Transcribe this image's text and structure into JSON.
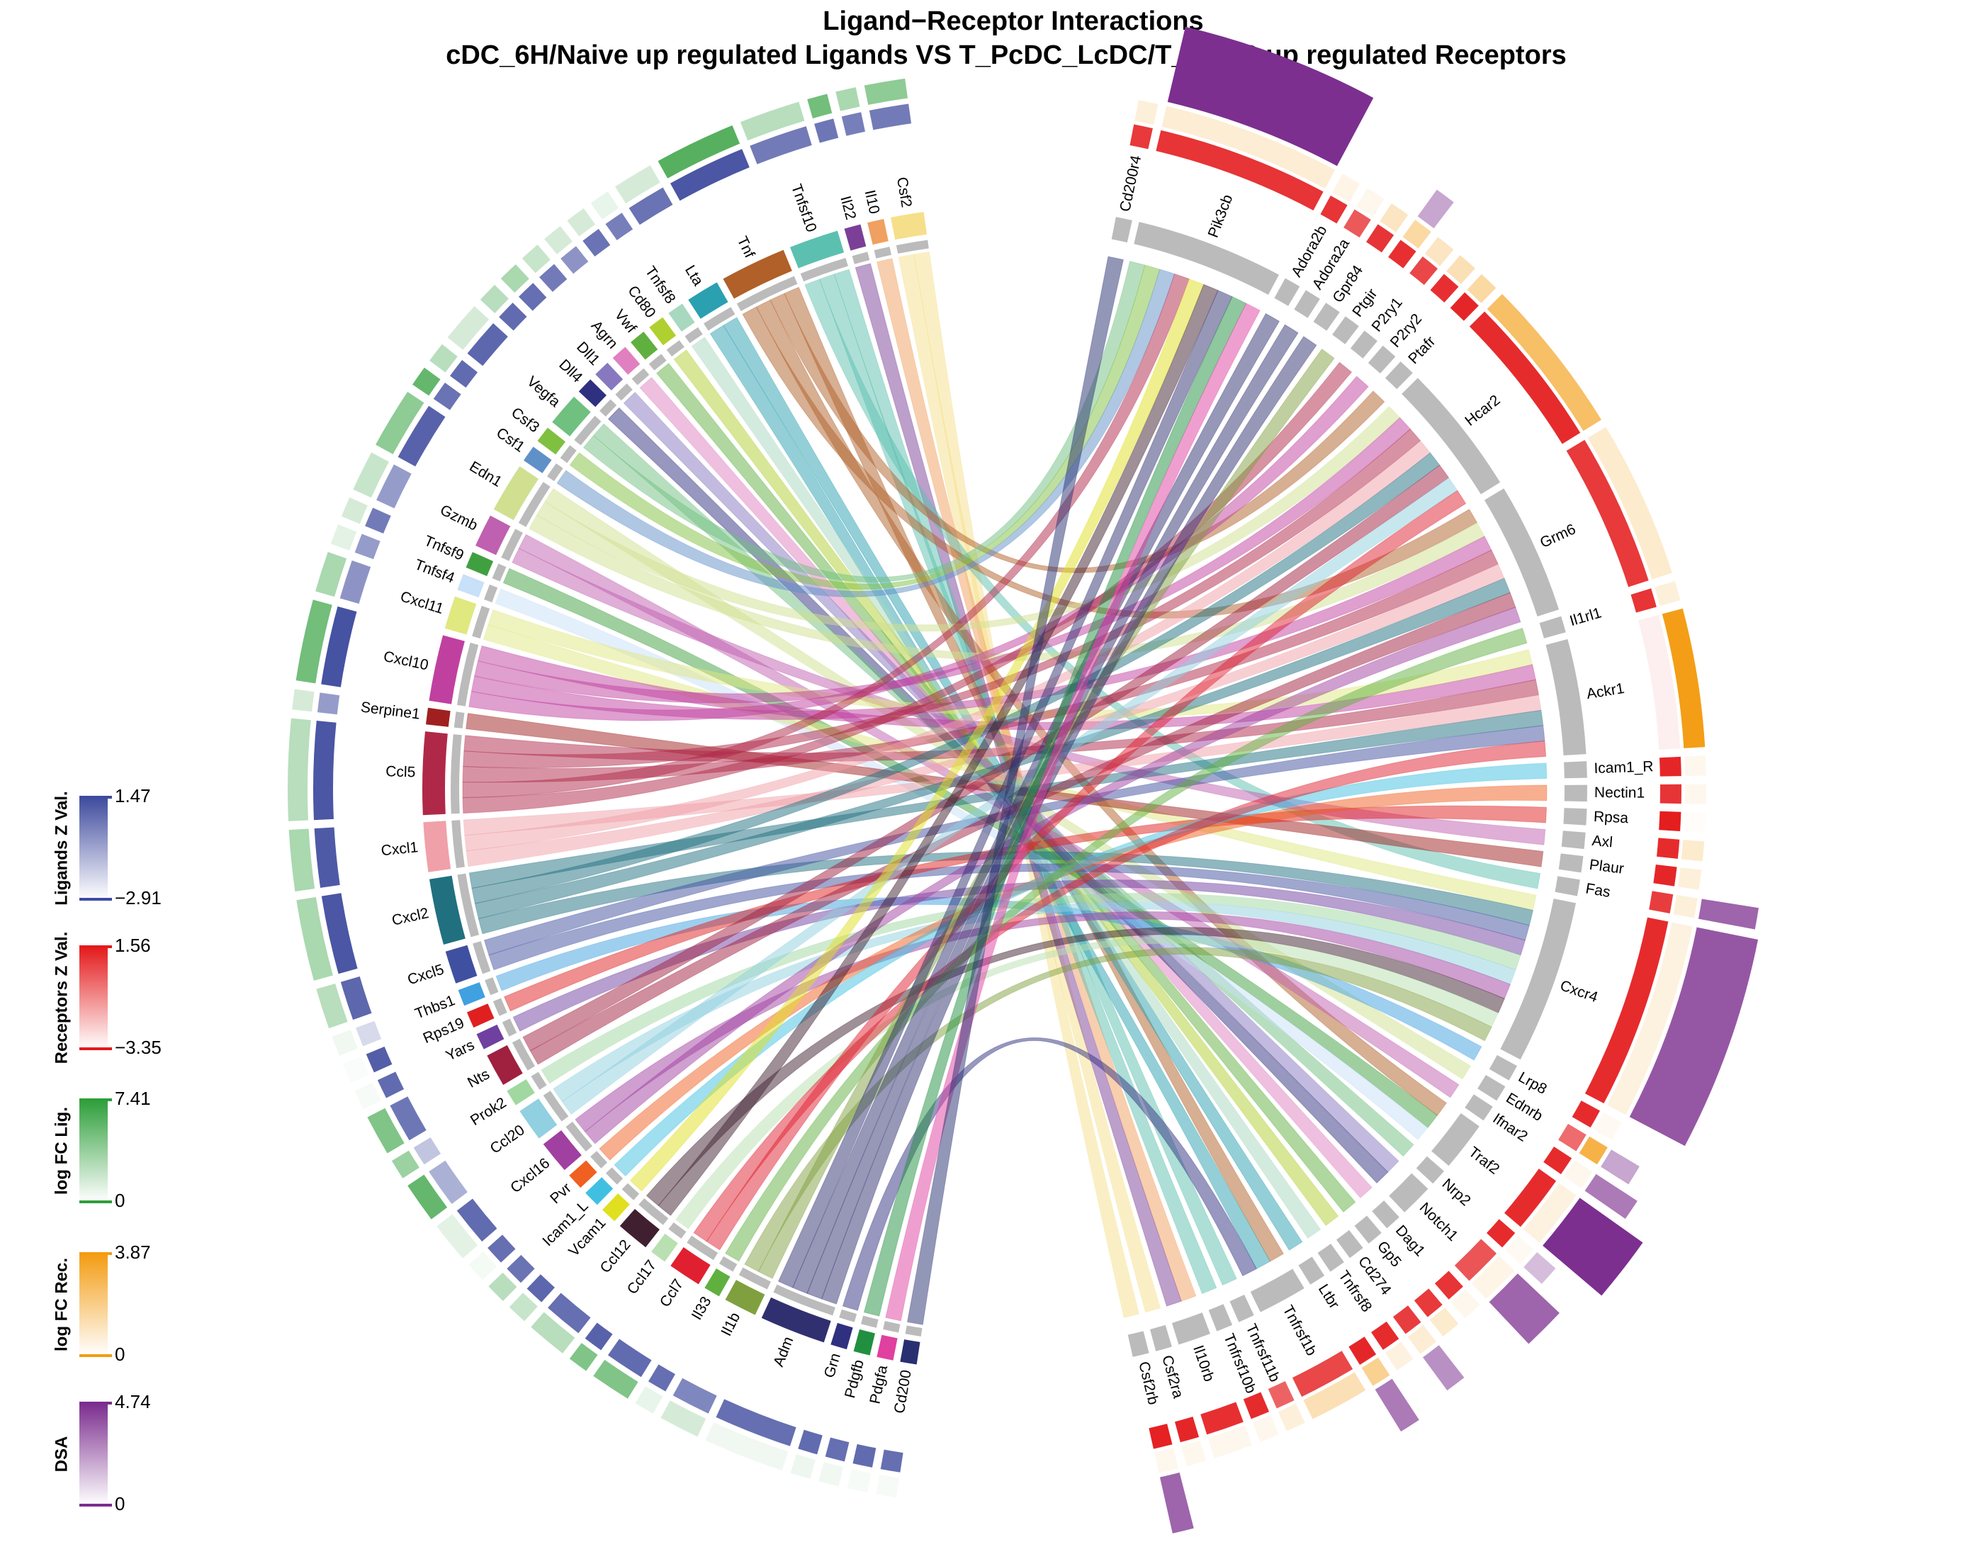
{
  "chart_data": {
    "type": "chord",
    "title": "Ligand−Receptor Interactions",
    "subtitle": "cDC_6H/Naive up regulated Ligands VS T_PcDC_LcDC/T_PcDC up regulated Receptors",
    "ligands": [
      {
        "name": "Csf2",
        "color": "#f6df8a",
        "zval": 0.3,
        "logfc": 4
      },
      {
        "name": "Il10",
        "color": "#f0a060",
        "zval": 0.2,
        "logfc": 3
      },
      {
        "name": "Il22",
        "color": "#7b3f98",
        "zval": 0.4,
        "logfc": 5
      },
      {
        "name": "Tnfsf10",
        "color": "#5cc0b0",
        "zval": 0.3,
        "logfc": 2.5
      },
      {
        "name": "Tnf",
        "color": "#b06028",
        "zval": 1.2,
        "logfc": 6
      },
      {
        "name": "Lta",
        "color": "#2aa0b0",
        "zval": 0.5,
        "logfc": 1.5
      },
      {
        "name": "Tnfsf8",
        "color": "#a8d8c0",
        "zval": 0.2,
        "logfc": 0.8
      },
      {
        "name": "Cd80",
        "color": "#b0d030",
        "zval": 0.5,
        "logfc": 1.5
      },
      {
        "name": "Vwf",
        "color": "#60b040",
        "zval": -0.3,
        "logfc": 1.5
      },
      {
        "name": "Agrn",
        "color": "#e080c0",
        "zval": 0.3,
        "logfc": 2
      },
      {
        "name": "Dll1",
        "color": "#8878c0",
        "zval": 0.6,
        "logfc": 3
      },
      {
        "name": "Dll4",
        "color": "#303080",
        "zval": 0.7,
        "logfc": 2.5
      },
      {
        "name": "Vegfa",
        "color": "#70c080",
        "zval": 0.8,
        "logfc": 1.5
      },
      {
        "name": "Csf3",
        "color": "#80c040",
        "zval": 0.7,
        "logfc": 2.5
      },
      {
        "name": "Csf1",
        "color": "#6090c8",
        "zval": 0.5,
        "logfc": 5.5
      },
      {
        "name": "Edn1",
        "color": "#d0e090",
        "zval": 0.9,
        "logfc": 4
      },
      {
        "name": "Gzmb",
        "color": "#c060b0",
        "zval": -0.5,
        "logfc": 2
      },
      {
        "name": "Tnfsf9",
        "color": "#40a040",
        "zval": 0.3,
        "logfc": 1.5
      },
      {
        "name": "Tnfsf4",
        "color": "#c8e0f8",
        "zval": -0.5,
        "logfc": 1
      },
      {
        "name": "Cxcl11",
        "color": "#e0e880",
        "zval": -0.3,
        "logfc": 3
      },
      {
        "name": "Cxcl10",
        "color": "#c040a0",
        "zval": 1.3,
        "logfc": 5
      },
      {
        "name": "Serpine1",
        "color": "#a02020",
        "zval": -0.5,
        "logfc": 1.5
      },
      {
        "name": "Ccl5",
        "color": "#b02848",
        "zval": 1.2,
        "logfc": 2.5
      },
      {
        "name": "Cxcl1",
        "color": "#f0a0a8",
        "zval": 1.1,
        "logfc": 3
      },
      {
        "name": "Cxcl2",
        "color": "#207080",
        "zval": 1.2,
        "logfc": 3
      },
      {
        "name": "Cxcl5",
        "color": "#4050a0",
        "zval": 0.8,
        "logfc": 2.5
      },
      {
        "name": "Thbs1",
        "color": "#40a0e0",
        "zval": -2,
        "logfc": 0.5
      },
      {
        "name": "Rps19",
        "color": "#e02020",
        "zval": 1,
        "logfc": 0.2
      },
      {
        "name": "Yars",
        "color": "#7040a0",
        "zval": 0.7,
        "logfc": 0.3
      },
      {
        "name": "Nts",
        "color": "#a02040",
        "zval": 0.4,
        "logfc": 4.5
      },
      {
        "name": "Prok2",
        "color": "#a0d8a0",
        "zval": -1.5,
        "logfc": 3.5
      },
      {
        "name": "Ccl20",
        "color": "#90d0e0",
        "zval": -1,
        "logfc": 5.5
      },
      {
        "name": "Cxcl16",
        "color": "#a040a0",
        "zval": 0.7,
        "logfc": 1
      },
      {
        "name": "Pvr",
        "color": "#f06020",
        "zval": 0.6,
        "logfc": 0.4
      },
      {
        "name": "Icam1_L",
        "color": "#40c0e0",
        "zval": 0.5,
        "logfc": 2.5
      },
      {
        "name": "Vcam1",
        "color": "#e0e020",
        "zval": 0.8,
        "logfc": 2
      },
      {
        "name": "Ccl12",
        "color": "#402030",
        "zval": 0.6,
        "logfc": 2.5
      },
      {
        "name": "Ccl17",
        "color": "#b8e0b0",
        "zval": 0.9,
        "logfc": 4.5
      },
      {
        "name": "Ccl7",
        "color": "#e02030",
        "zval": 0.7,
        "logfc": 4.5
      },
      {
        "name": "Il33",
        "color": "#60b040",
        "zval": 0.6,
        "logfc": 0.8
      },
      {
        "name": "Il1b",
        "color": "#80a040",
        "zval": 0,
        "logfc": 1.5
      },
      {
        "name": "Adm",
        "color": "#303070",
        "zval": 0.6,
        "logfc": 0.5
      },
      {
        "name": "Grn",
        "color": "#303080",
        "zval": 0.7,
        "logfc": 0.6
      },
      {
        "name": "Pdgfb",
        "color": "#209040",
        "zval": 0.6,
        "logfc": 0.5
      },
      {
        "name": "Pdgfa",
        "color": "#e040a0",
        "zval": 0.7,
        "logfc": 0.3
      },
      {
        "name": "Cd200",
        "color": "#283070",
        "zval": 0.6,
        "logfc": 0.3
      }
    ],
    "receptors": [
      {
        "name": "Cd200r4",
        "zval": 0.9,
        "logfc": 0.6,
        "dsa": 0
      },
      {
        "name": "Pik3cb",
        "zval": 1,
        "logfc": 0.7,
        "dsa": 4.7
      },
      {
        "name": "Adora2b",
        "zval": 1,
        "logfc": 0.4,
        "dsa": 0
      },
      {
        "name": "Adora2a",
        "zval": 0.2,
        "logfc": 0.3,
        "dsa": 0
      },
      {
        "name": "Gpr84",
        "zval": 1,
        "logfc": 1,
        "dsa": 0
      },
      {
        "name": "Ptgir",
        "zval": 1.1,
        "logfc": 1.5,
        "dsa": 2
      },
      {
        "name": "P2ry1",
        "zval": 0.6,
        "logfc": 1,
        "dsa": 0
      },
      {
        "name": "P2ry2",
        "zval": 1.1,
        "logfc": 1.2,
        "dsa": 0
      },
      {
        "name": "Ptafr",
        "zval": 1.3,
        "logfc": 1.5,
        "dsa": 0
      },
      {
        "name": "Hcar2",
        "zval": 1.2,
        "logfc": 2.5,
        "dsa": 0
      },
      {
        "name": "Grm6",
        "zval": 0.9,
        "logfc": 0.8,
        "dsa": 0
      },
      {
        "name": "Il1rl1",
        "zval": 1,
        "logfc": 0.6,
        "dsa": 0
      },
      {
        "name": "Ackr1",
        "zval": -3,
        "logfc": 3.8,
        "dsa": 0
      },
      {
        "name": "Icam1_R",
        "zval": 1.3,
        "logfc": 0.3,
        "dsa": 0
      },
      {
        "name": "Nectin1",
        "zval": 1,
        "logfc": 0.3,
        "dsa": 0
      },
      {
        "name": "Rpsa",
        "zval": 1.5,
        "logfc": 0.1,
        "dsa": 0
      },
      {
        "name": "Axl",
        "zval": 1.2,
        "logfc": 0.8,
        "dsa": 0
      },
      {
        "name": "Plaur",
        "zval": 1.3,
        "logfc": 0.6,
        "dsa": 0
      },
      {
        "name": "Fas",
        "zval": 0.8,
        "logfc": 0.6,
        "dsa": 3.5
      },
      {
        "name": "Cxcr4",
        "zval": 1.2,
        "logfc": 0.5,
        "dsa": 3.8
      },
      {
        "name": "Lrp8",
        "zval": 1.2,
        "logfc": 0.2,
        "dsa": 0
      },
      {
        "name": "Ednrb",
        "zval": -0.2,
        "logfc": 3,
        "dsa": 2
      },
      {
        "name": "Ifnar2",
        "zval": 1.2,
        "logfc": 0.3,
        "dsa": 3
      },
      {
        "name": "Traf2",
        "zval": 1.2,
        "logfc": 0.5,
        "dsa": 4.7
      },
      {
        "name": "Nrp2",
        "zval": 1.2,
        "logfc": 0.2,
        "dsa": 1.5
      },
      {
        "name": "Notch1",
        "zval": 0.3,
        "logfc": 0.4,
        "dsa": 3.5
      },
      {
        "name": "Dag1",
        "zval": 1,
        "logfc": 0.3,
        "dsa": 0
      },
      {
        "name": "Gp5",
        "zval": 0.9,
        "logfc": 0.8,
        "dsa": 0
      },
      {
        "name": "Cd274",
        "zval": 0.8,
        "logfc": 0.7,
        "dsa": 2.5
      },
      {
        "name": "Tnfrsf8",
        "zval": 1.2,
        "logfc": 0.5,
        "dsa": 0
      },
      {
        "name": "Ltbr",
        "zval": 1.3,
        "logfc": 1.8,
        "dsa": 3
      },
      {
        "name": "Tnfrsf1b",
        "zval": 0.6,
        "logfc": 1.2,
        "dsa": 0
      },
      {
        "name": "Tnfrsf11b",
        "zval": 0,
        "logfc": 0.6,
        "dsa": 0
      },
      {
        "name": "Tnfrsf10b",
        "zval": 1.2,
        "logfc": 0.3,
        "dsa": 0
      },
      {
        "name": "Il10rb",
        "zval": 1.1,
        "logfc": 0.3,
        "dsa": 0
      },
      {
        "name": "Csf2ra",
        "zval": 1.3,
        "logfc": 0.3,
        "dsa": 0
      },
      {
        "name": "Csf2rb",
        "zval": 1.4,
        "logfc": 0.3,
        "dsa": 3.5
      }
    ],
    "links": [
      [
        "Csf2",
        "Csf2rb"
      ],
      [
        "Csf2",
        "Csf2ra"
      ],
      [
        "Il10",
        "Il10rb"
      ],
      [
        "Il22",
        "Il10rb"
      ],
      [
        "Tnfsf10",
        "Tnfrsf10b"
      ],
      [
        "Tnfsf10",
        "Tnfrsf11b"
      ],
      [
        "Tnfsf10",
        "Fas"
      ],
      [
        "Tnf",
        "Tnfrsf1b"
      ],
      [
        "Tnf",
        "Ptafr"
      ],
      [
        "Tnf",
        "Traf2"
      ],
      [
        "Tnf",
        "Grm6"
      ],
      [
        "Lta",
        "Ltbr"
      ],
      [
        "Lta",
        "Tnfrsf1b"
      ],
      [
        "Tnfsf8",
        "Tnfrsf8"
      ],
      [
        "Cd80",
        "Cd274"
      ],
      [
        "Vwf",
        "Gp5"
      ],
      [
        "Agrn",
        "Dag1"
      ],
      [
        "Dll1",
        "Notch1"
      ],
      [
        "Dll4",
        "Notch1"
      ],
      [
        "Vegfa",
        "Nrp2"
      ],
      [
        "Vegfa",
        "Pik3cb"
      ],
      [
        "Csf3",
        "Pik3cb"
      ],
      [
        "Csf1",
        "Pik3cb"
      ],
      [
        "Edn1",
        "Ednrb"
      ],
      [
        "Edn1",
        "Hcar2"
      ],
      [
        "Edn1",
        "Grm6"
      ],
      [
        "Gzmb",
        "Ifnar2"
      ],
      [
        "Gzmb",
        "Axl"
      ],
      [
        "Tnfsf9",
        "Traf2"
      ],
      [
        "Tnfsf4",
        "Traf2"
      ],
      [
        "Cxcl11",
        "Ackr1"
      ],
      [
        "Cxcl11",
        "Cxcr4"
      ],
      [
        "Cxcl10",
        "Ackr1"
      ],
      [
        "Cxcl10",
        "Hcar2"
      ],
      [
        "Cxcl10",
        "Grm6"
      ],
      [
        "Cxcl10",
        "P2ry2"
      ],
      [
        "Serpine1",
        "Plaur"
      ],
      [
        "Ccl5",
        "Ackr1"
      ],
      [
        "Ccl5",
        "Hcar2"
      ],
      [
        "Ccl5",
        "Grm6"
      ],
      [
        "Ccl5",
        "Pik3cb"
      ],
      [
        "Ccl5",
        "P2ry1"
      ],
      [
        "Cxcl1",
        "Ackr1"
      ],
      [
        "Cxcl1",
        "Hcar2"
      ],
      [
        "Cxcl1",
        "Grm6"
      ],
      [
        "Cxcl2",
        "Ackr1"
      ],
      [
        "Cxcl2",
        "Hcar2"
      ],
      [
        "Cxcl2",
        "Grm6"
      ],
      [
        "Cxcl2",
        "Cxcr4"
      ],
      [
        "Cxcl5",
        "Ackr1"
      ],
      [
        "Cxcl5",
        "Cxcr4"
      ],
      [
        "Thbs1",
        "Lrp8"
      ],
      [
        "Rps19",
        "Rpsa"
      ],
      [
        "Yars",
        "Cxcr4"
      ],
      [
        "Nts",
        "Hcar2"
      ],
      [
        "Nts",
        "Grm6"
      ],
      [
        "Prok2",
        "Cxcr4"
      ],
      [
        "Ccl20",
        "Cxcr4"
      ],
      [
        "Ccl20",
        "Hcar2"
      ],
      [
        "Cxcl16",
        "Cxcr4"
      ],
      [
        "Cxcl16",
        "Grm6"
      ],
      [
        "Pvr",
        "Nectin1"
      ],
      [
        "Icam1_L",
        "Icam1_R"
      ],
      [
        "Vcam1",
        "Pik3cb"
      ],
      [
        "Ccl12",
        "Cxcr4"
      ],
      [
        "Ccl12",
        "Pik3cb"
      ],
      [
        "Ccl17",
        "Cxcr4"
      ],
      [
        "Ccl7",
        "Ackr1"
      ],
      [
        "Ccl7",
        "Hcar2"
      ],
      [
        "Il33",
        "Il1rl1"
      ],
      [
        "Il1b",
        "Cxcr4"
      ],
      [
        "Il1b",
        "Ptgir"
      ],
      [
        "Adm",
        "Pik3cb"
      ],
      [
        "Adm",
        "Adora2b"
      ],
      [
        "Adm",
        "Adora2a"
      ],
      [
        "Adm",
        "Gpr84"
      ],
      [
        "Grn",
        "Tnfrsf1b"
      ],
      [
        "Pdgfb",
        "Pik3cb"
      ],
      [
        "Pdgfa",
        "Pik3cb"
      ],
      [
        "Cd200",
        "Cd200r4"
      ]
    ],
    "legends": [
      {
        "title": "Ligands Z Val.",
        "colors": [
          "#ffffff",
          "#3f4b9e"
        ],
        "ticks": [
          1.47,
          {
            "value": -2.91,
            "label": "−2.91"
          }
        ]
      },
      {
        "title": "Receptors Z Val.",
        "colors": [
          "#ffffff",
          "#e41a1c"
        ],
        "ticks": [
          1.56,
          {
            "value": -3.35,
            "label": "−3.35"
          }
        ]
      },
      {
        "title": "log FC Lig.",
        "colors": [
          "#ffffff",
          "#2e9e3a"
        ],
        "ticks": [
          7.41,
          0
        ]
      },
      {
        "title": "log FC Rec.",
        "colors": [
          "#ffffff",
          "#f39c12"
        ],
        "ticks": [
          3.87,
          0
        ]
      },
      {
        "title": "DSA",
        "colors": [
          "#ffffff",
          "#7b2d8e"
        ],
        "ticks": [
          4.74,
          0
        ]
      }
    ]
  }
}
